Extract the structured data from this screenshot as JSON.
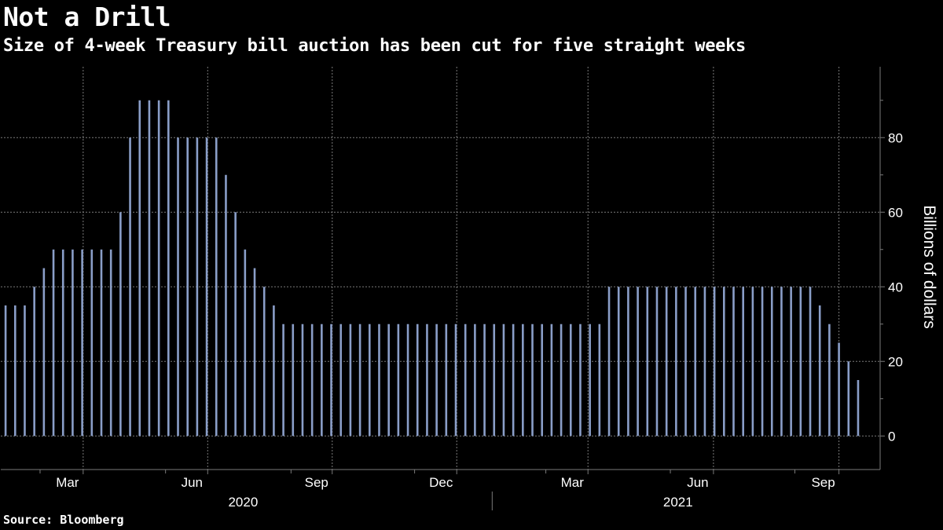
{
  "title": "Not a Drill",
  "subtitle": "Size of 4-week Treasury bill auction has been cut for five straight weeks",
  "source": "Source: Bloomberg",
  "colors": {
    "background": "#000000",
    "bar": "#8a9ec8",
    "grid": "#7a7a7a",
    "text": "#ffffff"
  },
  "chart_data": {
    "type": "bar",
    "title": "Not a Drill",
    "subtitle": "Size of 4-week Treasury bill auction has been cut for five straight weeks",
    "ylabel": "Billions of dollars",
    "xlabel": "",
    "ylim": [
      -9,
      99
    ],
    "yticks": [
      0,
      20,
      40,
      60,
      80
    ],
    "y_axis_side": "right",
    "grid": true,
    "x_domain_weeks": [
      0,
      91.8
    ],
    "month_ticks": [
      {
        "label": "Mar",
        "week": 8.6
      },
      {
        "label": "Jun",
        "week": 21.6
      },
      {
        "label": "Sep",
        "week": 34.6
      },
      {
        "label": "Dec",
        "week": 47.6
      },
      {
        "label": "Mar",
        "week": 61.3
      },
      {
        "label": "Jun",
        "week": 74.4
      },
      {
        "label": "Sep",
        "week": 87.5
      }
    ],
    "minor_ticks_weeks": [
      4.1,
      17.2,
      30.3,
      43.2,
      56.9,
      69.9,
      82.9
    ],
    "year_labels": [
      {
        "label": "2020",
        "week": 25.3
      },
      {
        "label": "2021",
        "week": 70.7
      }
    ],
    "year_divider_week": 51.3,
    "values": [
      35,
      35,
      35,
      40,
      45,
      50,
      50,
      50,
      50,
      50,
      50,
      50,
      60,
      80,
      90,
      90,
      90,
      90,
      80,
      80,
      80,
      80,
      80,
      70,
      60,
      50,
      45,
      40,
      35,
      30,
      30,
      30,
      30,
      30,
      30,
      30,
      30,
      30,
      30,
      30,
      30,
      30,
      30,
      30,
      30,
      30,
      30,
      30,
      30,
      30,
      30,
      30,
      30,
      30,
      30,
      30,
      30,
      30,
      30,
      30,
      30,
      30,
      30,
      40,
      40,
      40,
      40,
      40,
      40,
      40,
      40,
      40,
      40,
      40,
      40,
      40,
      40,
      40,
      40,
      40,
      40,
      40,
      40,
      40,
      40,
      35,
      30,
      25,
      20,
      15
    ]
  }
}
